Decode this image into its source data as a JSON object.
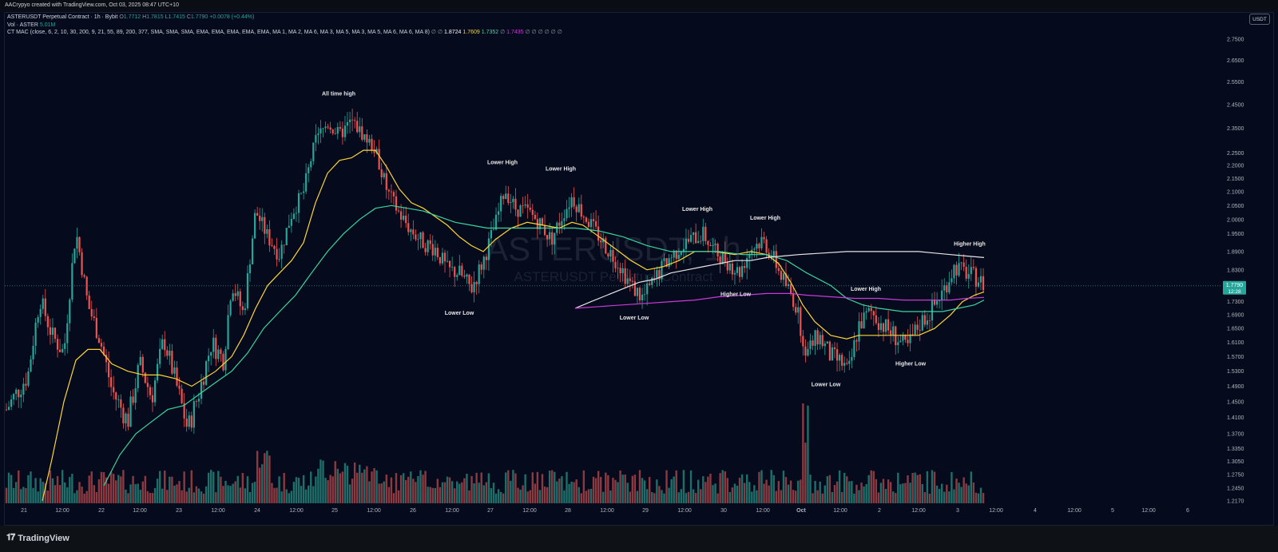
{
  "header": {
    "caption": "AACrypyo created with TradingView.com, Oct 03, 2025 08:47 UTC+10"
  },
  "legend": {
    "symbol": "ASTERUSDT Perpetual Contract · 1h · Bybit",
    "ohlc": [
      {
        "key": "O",
        "value": "1.7712"
      },
      {
        "key": "H",
        "value": "1.7815"
      },
      {
        "key": "L",
        "value": "1.7415"
      },
      {
        "key": "C",
        "value": "1.7790"
      }
    ],
    "change": "+0.0078 (+0.44%)",
    "volume_label": "Vol · ASTER",
    "volume_value": "5.01M",
    "indicator_label": "CT MAC (close, 6, 2, 10, 30, 200, 9, 21, 55, 89, 200, 377, SMA, SMA, SMA, EMA, EMA, EMA, EMA, EMA, MA 1, MA 2, MA 6, MA 3, MA 5, MA 3, MA 5, MA 6, MA 6, MA 8)",
    "indicator_values": [
      {
        "value": "∅ ∅",
        "color": "#9598a1"
      },
      {
        "value": "1.8724",
        "color": "#ffffff"
      },
      {
        "value": "1.7609",
        "color": "#fcd535"
      },
      {
        "value": "1.7352",
        "color": "#4cd9a6"
      },
      {
        "value": "∅",
        "color": "#9598a1"
      },
      {
        "value": "1.7435",
        "color": "#c93ad8"
      },
      {
        "value": "∅ ∅ ∅ ∅ ∅ ∅",
        "color": "#9598a1"
      }
    ]
  },
  "watermark": {
    "big": "ASTERUSDT, 1h",
    "small": "ASTERUSDT Perpetual Contract"
  },
  "currency_badge": "USDT",
  "colors": {
    "background": "#050a1c",
    "bull": "#26a69a",
    "bear": "#ef5350",
    "ma_white": "#e6e6e6",
    "ma_yellow": "#fcd535",
    "ma_green": "#3ad6a0",
    "ma_magenta": "#c93ad8"
  },
  "price_badge": {
    "price": "1.7790",
    "countdown": "12:28",
    "color": "#26a69a"
  },
  "chart_data": {
    "type": "candlestick",
    "y_axis": {
      "scale": "log",
      "ticks": [
        "2.7500",
        "2.6500",
        "2.5500",
        "2.4500",
        "2.3500",
        "2.2500",
        "2.2000",
        "2.1500",
        "2.1000",
        "2.0500",
        "2.0000",
        "1.9500",
        "1.8900",
        "1.8300",
        "1.7300",
        "1.6900",
        "1.6500",
        "1.6100",
        "1.5700",
        "1.5300",
        "1.4900",
        "1.4500",
        "1.4100",
        "1.3700",
        "1.3350",
        "1.3050",
        "1.2750",
        "1.2450",
        "1.2170"
      ]
    },
    "x_axis": {
      "ticks": [
        "21",
        "12:00",
        "22",
        "12:00",
        "23",
        "12:00",
        "24",
        "12:00",
        "25",
        "12:00",
        "26",
        "12:00",
        "27",
        "12:00",
        "28",
        "12:00",
        "29",
        "12:00",
        "30",
        "12:00",
        "Oct",
        "12:00",
        "2",
        "12:00",
        "3",
        "12:00",
        "4",
        "12:00",
        "5",
        "12:00",
        "6"
      ]
    },
    "last_close": 1.779,
    "annotations": [
      {
        "text": "All time high",
        "price": 2.49
      },
      {
        "text": "Lower High",
        "price": 2.205
      },
      {
        "text": "Lower High",
        "price": 2.18
      },
      {
        "text": "Lower Low",
        "price": 1.69
      },
      {
        "text": "Lower High",
        "price": 2.03
      },
      {
        "text": "Lower Low",
        "price": 1.676
      },
      {
        "text": "Lower High",
        "price": 2.0
      },
      {
        "text": "Higher Low",
        "price": 1.748
      },
      {
        "text": "Lower Low",
        "price": 1.49
      },
      {
        "text": "Lower High",
        "price": 1.764
      },
      {
        "text": "Higher Low",
        "price": 1.546
      },
      {
        "text": "Higher High",
        "price": 1.91
      }
    ]
  },
  "footer": {
    "brand": "TradingView"
  }
}
